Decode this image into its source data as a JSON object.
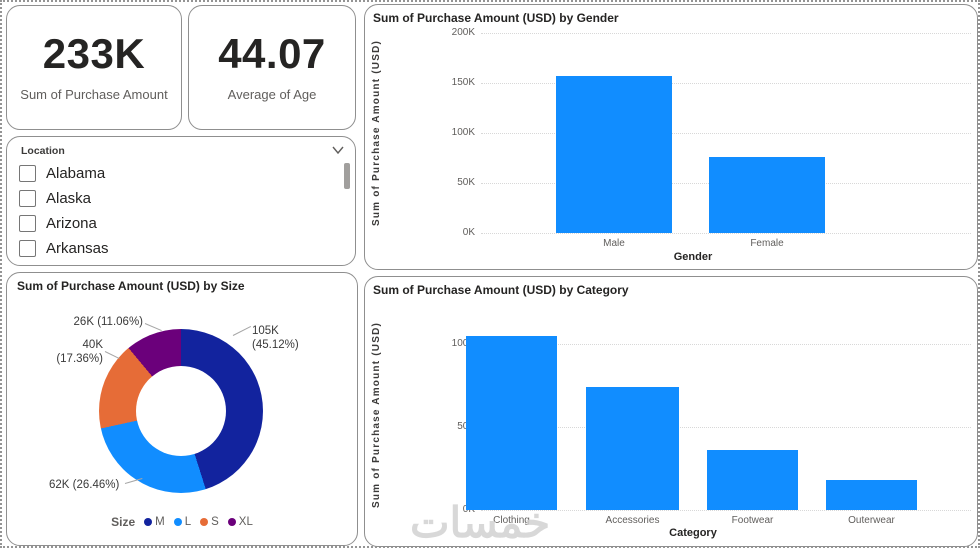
{
  "page": {
    "watermark": "خمسات"
  },
  "kpi_cards": [
    {
      "value": "233K",
      "caption": "Sum of Purchase Amount"
    },
    {
      "value": "44.07",
      "caption": "Average of Age"
    }
  ],
  "slicer": {
    "title": "Location",
    "items": [
      {
        "label": "Alabama",
        "checked": false
      },
      {
        "label": "Alaska",
        "checked": false
      },
      {
        "label": "Arizona",
        "checked": false
      },
      {
        "label": "Arkansas",
        "checked": false
      }
    ]
  },
  "chart_data": [
    {
      "id": "gender_bar",
      "type": "bar",
      "title": "Sum of Purchase Amount (USD) by Gender",
      "categories": [
        "Male",
        "Female"
      ],
      "values": [
        157000,
        76000
      ],
      "xlabel": "Gender",
      "ylabel": "Sum of Purchase Amount (USD)",
      "yticks": [
        {
          "label": "0K",
          "value": 0
        },
        {
          "label": "50K",
          "value": 50000
        },
        {
          "label": "100K",
          "value": 100000
        },
        {
          "label": "150K",
          "value": 150000
        },
        {
          "label": "200K",
          "value": 200000
        }
      ],
      "ylim": [
        0,
        200000
      ],
      "bar_color": "#118DFF",
      "grid": true,
      "legend_position": "none"
    },
    {
      "id": "category_bar",
      "type": "bar",
      "title": "Sum of Purchase Amount (USD) by Category",
      "categories": [
        "Clothing",
        "Accessories",
        "Footwear",
        "Outerwear"
      ],
      "values": [
        105000,
        74000,
        36000,
        18000
      ],
      "xlabel": "Category",
      "ylabel": "Sum of Purchase Amount (USD)",
      "yticks": [
        {
          "label": "0K",
          "value": 0
        },
        {
          "label": "50K",
          "value": 50000
        },
        {
          "label": "100K",
          "value": 100000
        }
      ],
      "ylim": [
        0,
        140000
      ],
      "bar_color": "#118DFF",
      "grid": true,
      "legend_position": "none"
    },
    {
      "id": "size_donut",
      "type": "donut",
      "title": "Sum of Purchase Amount (USD) by Size",
      "legend_title": "Size",
      "legend_position": "bottom",
      "segments": [
        {
          "name": "M",
          "value": 105000,
          "pct": 45.12,
          "color": "#12239E",
          "label_lines": [
            "105K",
            "(45.12%)"
          ]
        },
        {
          "name": "L",
          "value": 62000,
          "pct": 26.46,
          "color": "#118DFF",
          "label_lines": [
            "62K (26.46%)"
          ]
        },
        {
          "name": "S",
          "value": 40000,
          "pct": 17.36,
          "color": "#E66C37",
          "label_lines": [
            "40K",
            "(17.36%)"
          ]
        },
        {
          "name": "XL",
          "value": 26000,
          "pct": 11.06,
          "color": "#6B007B",
          "label_lines": [
            "26K (11.06%)"
          ]
        }
      ]
    }
  ]
}
